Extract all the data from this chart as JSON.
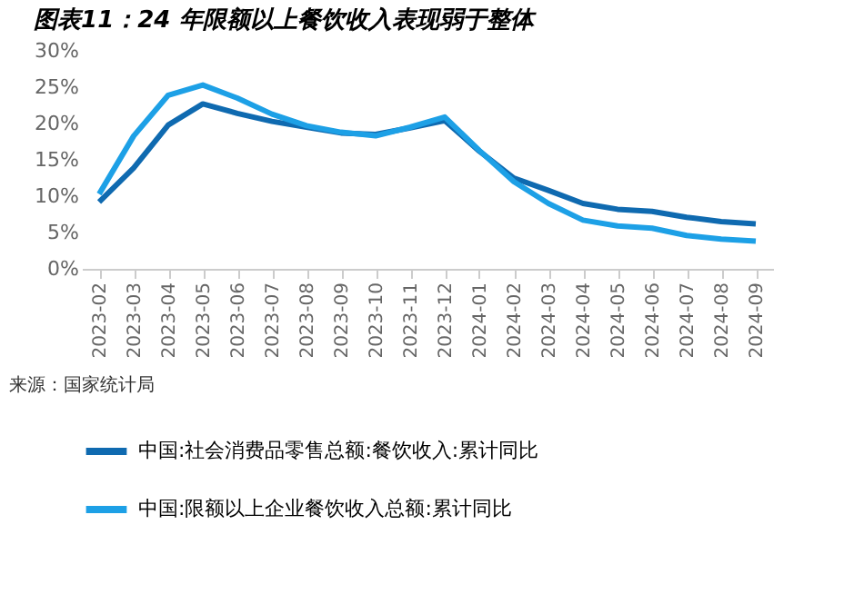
{
  "chart_data": {
    "type": "line",
    "title": "图表11：24 年限额以上餐饮收入表现弱于整体",
    "categories": [
      "2023-02",
      "2023-03",
      "2023-04",
      "2023-05",
      "2023-06",
      "2023-07",
      "2023-08",
      "2023-09",
      "2023-10",
      "2023-11",
      "2023-12",
      "2024-01",
      "2024-02",
      "2024-03",
      "2024-04",
      "2024-05",
      "2024-06",
      "2024-07",
      "2024-08",
      "2024-09"
    ],
    "series": [
      {
        "name": "中国:社会消费品零售总额:餐饮收入:累计同比",
        "color": "#0f6ab0",
        "values": [
          9.2,
          13.9,
          19.8,
          22.7,
          21.4,
          20.3,
          19.5,
          18.7,
          18.5,
          19.4,
          20.4,
          16.2,
          12.5,
          10.8,
          9.0,
          8.2,
          7.9,
          7.1,
          6.5,
          6.2
        ]
      },
      {
        "name": "中国:限额以上企业餐饮收入总额:累计同比",
        "color": "#1da0e6",
        "values": [
          10.3,
          18.3,
          23.9,
          25.3,
          23.5,
          21.3,
          19.7,
          18.8,
          18.3,
          19.5,
          20.9,
          16.3,
          12.0,
          9.0,
          6.7,
          5.9,
          5.6,
          4.6,
          4.1,
          3.8
        ]
      }
    ],
    "ylim": [
      0,
      30
    ],
    "yticks": [
      {
        "value": 0,
        "label": "0%"
      },
      {
        "value": 5,
        "label": "5%"
      },
      {
        "value": 10,
        "label": "10%"
      },
      {
        "value": 15,
        "label": "15%"
      },
      {
        "value": 20,
        "label": "20%"
      },
      {
        "value": 25,
        "label": "25%"
      },
      {
        "value": 30,
        "label": "30%"
      }
    ],
    "grid": false,
    "legend": "bottom",
    "marker": "none",
    "line_style": "solid",
    "annotations": [
      "来源：国家统计局"
    ]
  }
}
